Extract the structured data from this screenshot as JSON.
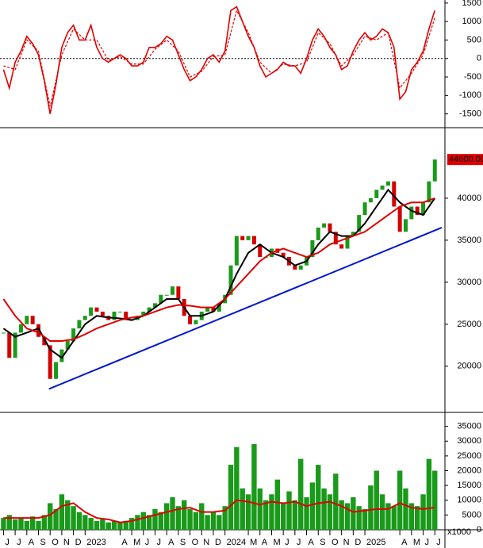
{
  "chart_data": [
    {
      "type": "line",
      "xlim": [
        -0.3,
        37.8
      ],
      "ylim": [
        -1830,
        1540
      ],
      "yticks": [
        -1500,
        -1000,
        -500,
        0,
        500,
        1000,
        1500
      ],
      "zero_line": true,
      "series": [
        {
          "color": "#e00000",
          "x": [
            0,
            0.5,
            1,
            1.5,
            2,
            2.5,
            3,
            3.5,
            4,
            4.5,
            5,
            5.5,
            6,
            6.5,
            7,
            7.5,
            8,
            8.5,
            9,
            9.5,
            10,
            10.5,
            11,
            11.5,
            12,
            12.5,
            13,
            13.5,
            14,
            14.5,
            15,
            15.5,
            16,
            16.5,
            17,
            17.5,
            18,
            18.5,
            19,
            19.5,
            20,
            20.5,
            21,
            21.5,
            22,
            22.5,
            23,
            23.5,
            24,
            24.5,
            25,
            25.5,
            26,
            26.5,
            27,
            27.5,
            28,
            28.5,
            29,
            29.5,
            30,
            30.5,
            31,
            31.5,
            32,
            32.5,
            33,
            33.5,
            34,
            34.5,
            35,
            35.5,
            36,
            36.5,
            37
          ],
          "values": [
            -300,
            -800,
            -100,
            200,
            600,
            400,
            100,
            -600,
            -1500,
            -700,
            300,
            700,
            900,
            500,
            500,
            900,
            300,
            0,
            -100,
            0,
            100,
            0,
            -200,
            -200,
            -100,
            300,
            300,
            400,
            600,
            500,
            100,
            -300,
            -600,
            -500,
            -300,
            0,
            100,
            -100,
            200,
            1300,
            1400,
            1000,
            600,
            300,
            -200,
            -500,
            -400,
            -300,
            -100,
            -200,
            -200,
            -400,
            0,
            500,
            800,
            600,
            300,
            100,
            -300,
            -200,
            200,
            500,
            700,
            500,
            600,
            800,
            700,
            300,
            -1100,
            -900,
            -300,
            -100,
            200,
            800,
            1300
          ]
        },
        {
          "color": "#e00000",
          "dash": true,
          "x": [
            0,
            1,
            2,
            3,
            4,
            5,
            6,
            7,
            8,
            9,
            10,
            11,
            12,
            13,
            14,
            15,
            16,
            17,
            18,
            19,
            20,
            21,
            22,
            23,
            24,
            25,
            26,
            27,
            28,
            29,
            30,
            31,
            32,
            33,
            34,
            35,
            36,
            37
          ],
          "values": [
            -200,
            -300,
            500,
            200,
            -1300,
            100,
            800,
            500,
            500,
            -50,
            50,
            -150,
            -150,
            250,
            500,
            200,
            -500,
            -350,
            50,
            100,
            1300,
            700,
            -100,
            -400,
            -150,
            -200,
            -100,
            700,
            400,
            -200,
            100,
            600,
            500,
            700,
            -800,
            -400,
            100,
            1100
          ]
        }
      ]
    },
    {
      "type": "price",
      "xlim": [
        -0.3,
        37.8
      ],
      "ylim": [
        14700,
        48200
      ],
      "yticks": [
        20000,
        25000,
        30000,
        35000,
        40000
      ],
      "up_color": "#1a9a1a",
      "down_color": "#d40000",
      "x": [
        0,
        0.5,
        1,
        1.5,
        2,
        2.5,
        3,
        3.5,
        4,
        4.5,
        5,
        5.5,
        6,
        6.5,
        7,
        7.5,
        8,
        8.5,
        9,
        9.5,
        10,
        10.5,
        11,
        11.5,
        12,
        12.5,
        13,
        13.5,
        14,
        14.5,
        15,
        15.5,
        16,
        16.5,
        17,
        17.5,
        18,
        18.5,
        19,
        19.5,
        20,
        20.5,
        21,
        21.5,
        22,
        22.5,
        23,
        23.5,
        24,
        24.5,
        25,
        25.5,
        26,
        26.5,
        27,
        27.5,
        28,
        28.5,
        29,
        29.5,
        30,
        30.5,
        31,
        31.5,
        32,
        32.5,
        33,
        33.5,
        34,
        34.5,
        35,
        35.5,
        36,
        36.5,
        37
      ],
      "values": [
        24000,
        21000,
        24000,
        25000,
        26000,
        25000,
        23500,
        22500,
        18500,
        20500,
        22000,
        23000,
        24500,
        25500,
        26000,
        27000,
        26500,
        26000,
        25500,
        26500,
        26500,
        25500,
        25500,
        26000,
        26500,
        27000,
        27500,
        28500,
        28500,
        29500,
        28000,
        26000,
        25000,
        25500,
        26500,
        27000,
        26500,
        27500,
        28500,
        32000,
        35500,
        35000,
        35500,
        34500,
        33000,
        33000,
        34000,
        33500,
        33000,
        32000,
        31500,
        32000,
        33000,
        35000,
        36500,
        37000,
        36000,
        34500,
        34000,
        35500,
        36000,
        38000,
        39500,
        40000,
        41000,
        41500,
        42000,
        39000,
        36000,
        37500,
        39000,
        38000,
        39500,
        42000,
        44600
      ],
      "moving_averages": [
        {
          "color": "#000000",
          "x": [
            0,
            1,
            2,
            3,
            4,
            5,
            6,
            7,
            8,
            9,
            10,
            11,
            12,
            13,
            14,
            15,
            16,
            17,
            18,
            19,
            20,
            21,
            22,
            23,
            24,
            25,
            26,
            27,
            28,
            29,
            30,
            31,
            32,
            33,
            34,
            35,
            36,
            37
          ],
          "values": [
            24500,
            23500,
            24000,
            24500,
            22000,
            21000,
            23000,
            25000,
            26000,
            25800,
            25700,
            25500,
            26000,
            27000,
            28000,
            28000,
            26000,
            26000,
            26500,
            28000,
            31000,
            33500,
            34500,
            33500,
            33000,
            32000,
            32500,
            34500,
            36000,
            35500,
            35500,
            37000,
            39000,
            41000,
            39500,
            38500,
            38000,
            40000
          ]
        },
        {
          "color": "#e00000",
          "x": [
            0,
            1,
            2,
            3,
            4,
            5,
            6,
            7,
            8,
            9,
            10,
            11,
            12,
            13,
            14,
            15,
            16,
            17,
            18,
            19,
            20,
            21,
            22,
            23,
            24,
            25,
            26,
            27,
            28,
            29,
            30,
            31,
            32,
            33,
            34,
            35,
            36,
            37
          ],
          "values": [
            28000,
            26000,
            24500,
            24000,
            23000,
            23000,
            23200,
            23800,
            24500,
            25000,
            25500,
            25800,
            26000,
            26500,
            27000,
            27300,
            27200,
            27000,
            27000,
            28000,
            29500,
            31000,
            32500,
            33500,
            34000,
            33500,
            33000,
            33500,
            34500,
            35000,
            35500,
            36000,
            37000,
            38000,
            39000,
            39500,
            39500,
            40000
          ]
        }
      ],
      "trendline": {
        "color": "#0019c8",
        "x": [
          3.9,
          37.6
        ],
        "values": [
          17300,
          36500
        ]
      },
      "last_value": 44600,
      "last_value_label": "44600.00",
      "last_value_color": "#e00000"
    },
    {
      "type": "bar",
      "xlim": [
        -0.3,
        37.8
      ],
      "ylim": [
        0,
        39200
      ],
      "yticks": [
        0,
        5000,
        10000,
        15000,
        20000,
        25000,
        30000,
        35000
      ],
      "unit_label": "x1000",
      "color": "#1a9a1a",
      "x": [
        0,
        0.5,
        1,
        1.5,
        2,
        2.5,
        3,
        3.5,
        4,
        4.5,
        5,
        5.5,
        6,
        6.5,
        7,
        7.5,
        8,
        8.5,
        9,
        9.5,
        10,
        10.5,
        11,
        11.5,
        12,
        12.5,
        13,
        13.5,
        14,
        14.5,
        15,
        15.5,
        16,
        16.5,
        17,
        17.5,
        18,
        18.5,
        19,
        19.5,
        20,
        20.5,
        21,
        21.5,
        22,
        22.5,
        23,
        23.5,
        24,
        24.5,
        25,
        25.5,
        26,
        26.5,
        27,
        27.5,
        28,
        28.5,
        29,
        29.5,
        30,
        30.5,
        31,
        31.5,
        32,
        32.5,
        33,
        33.5,
        34,
        34.5,
        35,
        35.5,
        36,
        36.5,
        37
      ],
      "values": [
        4000,
        5000,
        3500,
        4000,
        3000,
        4500,
        3000,
        5000,
        9000,
        7000,
        12000,
        10000,
        8000,
        6000,
        5000,
        4000,
        3000,
        3500,
        2500,
        3000,
        2500,
        3000,
        4000,
        5000,
        6000,
        5000,
        7000,
        6000,
        9000,
        11000,
        8000,
        10000,
        7000,
        6000,
        9000,
        5000,
        6000,
        5000,
        8000,
        22000,
        28000,
        14000,
        12000,
        29000,
        14000,
        10000,
        12000,
        17000,
        9000,
        13000,
        10000,
        24000,
        11000,
        16000,
        22000,
        14000,
        12000,
        19000,
        10000,
        9000,
        11000,
        8000,
        7000,
        15000,
        20000,
        12000,
        9000,
        8000,
        20000,
        14000,
        9000,
        8000,
        12000,
        24000,
        20000
      ],
      "moving_average": {
        "color": "#e00000",
        "x": [
          0,
          1,
          2,
          3,
          4,
          5,
          6,
          7,
          8,
          9,
          10,
          11,
          12,
          13,
          14,
          15,
          16,
          17,
          18,
          19,
          20,
          21,
          22,
          23,
          24,
          25,
          26,
          27,
          28,
          29,
          30,
          31,
          32,
          33,
          34,
          35,
          36,
          37
        ],
        "values": [
          4000,
          4000,
          4000,
          4000,
          5000,
          8000,
          9000,
          6000,
          4000,
          3500,
          2500,
          3000,
          4000,
          5000,
          6000,
          7000,
          7500,
          6000,
          6000,
          6500,
          10000,
          9500,
          8500,
          9500,
          9000,
          9500,
          8000,
          9000,
          9500,
          8000,
          6000,
          6500,
          7000,
          7000,
          9000,
          7500,
          7000,
          7500
        ]
      },
      "xticks": [
        {
          "value": 0,
          "label": "J"
        },
        {
          "value": 1,
          "label": "J"
        },
        {
          "value": 2,
          "label": "A"
        },
        {
          "value": 3,
          "label": "S"
        },
        {
          "value": 4,
          "label": "O"
        },
        {
          "value": 5,
          "label": "N"
        },
        {
          "value": 6,
          "label": "D"
        },
        {
          "value": 7,
          "label": "2023"
        },
        {
          "value": 10,
          "label": "A"
        },
        {
          "value": 11,
          "label": "M"
        },
        {
          "value": 12,
          "label": "J"
        },
        {
          "value": 13,
          "label": "J"
        },
        {
          "value": 14,
          "label": "A"
        },
        {
          "value": 15,
          "label": "S"
        },
        {
          "value": 16,
          "label": "O"
        },
        {
          "value": 17,
          "label": "N"
        },
        {
          "value": 18,
          "label": "D"
        },
        {
          "value": 19,
          "label": "2024"
        },
        {
          "value": 21,
          "label": "M"
        },
        {
          "value": 22,
          "label": "A"
        },
        {
          "value": 23,
          "label": "M"
        },
        {
          "value": 24,
          "label": "J"
        },
        {
          "value": 25,
          "label": "J"
        },
        {
          "value": 26,
          "label": "A"
        },
        {
          "value": 27,
          "label": "S"
        },
        {
          "value": 28,
          "label": "O"
        },
        {
          "value": 29,
          "label": "N"
        },
        {
          "value": 30,
          "label": "D"
        },
        {
          "value": 31,
          "label": "2025"
        },
        {
          "value": 34,
          "label": "A"
        },
        {
          "value": 35,
          "label": "M"
        },
        {
          "value": 36,
          "label": "J"
        },
        {
          "value": 37,
          "label": "J"
        }
      ]
    }
  ]
}
